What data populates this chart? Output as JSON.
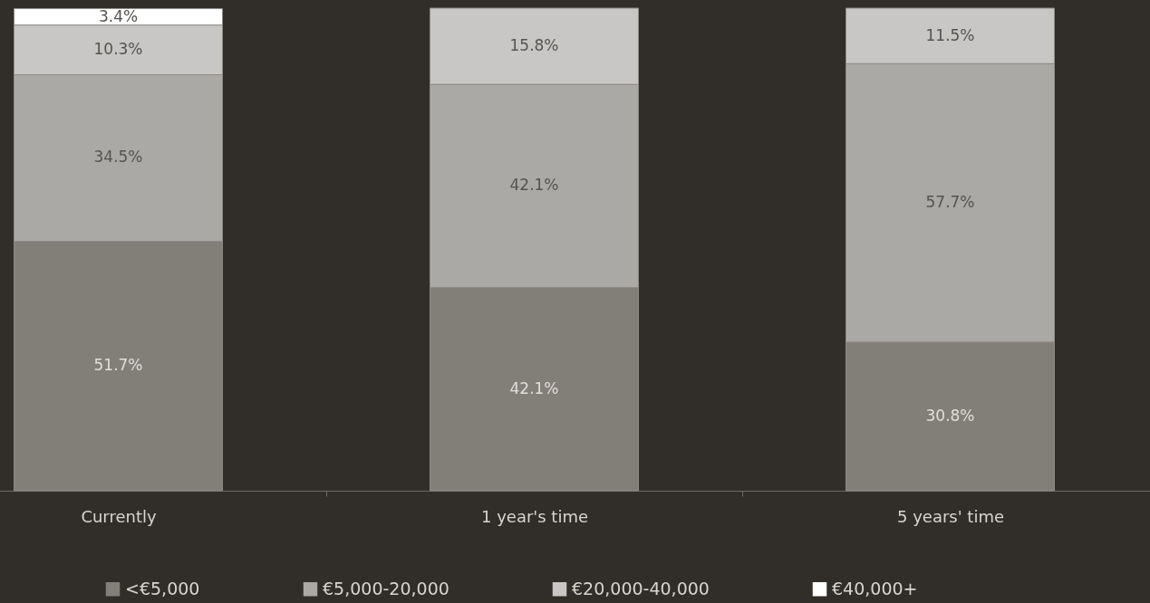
{
  "chart_data": {
    "type": "bar",
    "stacked": true,
    "categories": [
      "Currently",
      "1 year's time",
      "5 years' time"
    ],
    "series": [
      {
        "name": "<€5,000",
        "color": "#827e78",
        "values": [
          51.7,
          42.1,
          30.8
        ],
        "value_labels": [
          "51.7%",
          "42.1%",
          "30.8%"
        ]
      },
      {
        "name": "€5,000-20,000",
        "color": "#aaa9a6",
        "values": [
          34.5,
          42.1,
          57.7
        ],
        "value_labels": [
          "34.5%",
          "42.1%",
          "57.7%"
        ]
      },
      {
        "name": "€20,000-40,000",
        "color": "#c8c7c5",
        "values": [
          10.3,
          15.8,
          11.5
        ],
        "value_labels": [
          "10.3%",
          "15.8%",
          "11.5%"
        ]
      },
      {
        "name": "€40,000+",
        "color": "#ffffff",
        "values": [
          3.4,
          null,
          null
        ],
        "value_labels": [
          "3.4%",
          null,
          null
        ]
      }
    ],
    "ylim": [
      0,
      100
    ],
    "tick_labels": "x",
    "legend": "bottom"
  }
}
